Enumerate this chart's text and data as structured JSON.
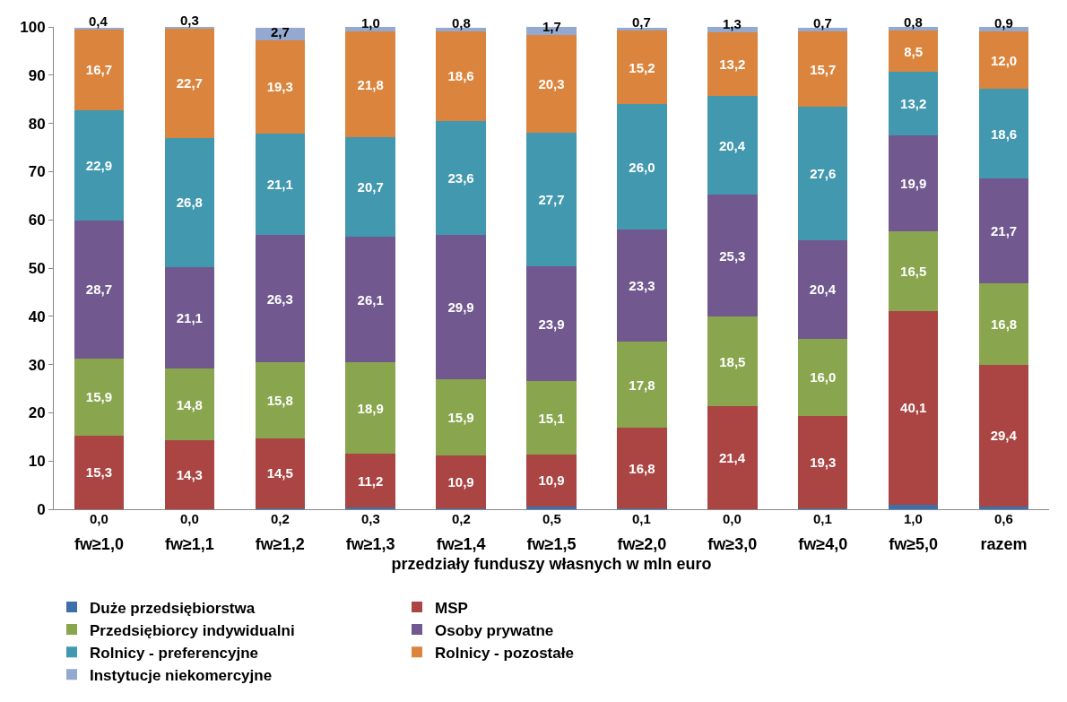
{
  "chart_data": {
    "type": "bar",
    "stacked": true,
    "xlabel": "przedziały funduszy własnych w mln euro",
    "categories": [
      "fw≥1,0",
      "fw≥1,1",
      "fw≥1,2",
      "fw≥1,3",
      "fw≥1,4",
      "fw≥1,5",
      "fw≥2,0",
      "fw≥3,0",
      "fw≥4,0",
      "fw≥5,0",
      "razem"
    ],
    "ylim": [
      0,
      100
    ],
    "yticks": [
      0,
      10,
      20,
      30,
      40,
      50,
      60,
      70,
      80,
      90,
      100
    ],
    "grid": false,
    "legend": "bottom",
    "series": [
      {
        "name": "Duże przedsiębiorstwa",
        "color": "#3f6faa",
        "values": [
          0.0,
          0.0,
          0.2,
          0.3,
          0.2,
          0.5,
          0.1,
          0.0,
          0.1,
          1.0,
          0.6
        ],
        "value_labels": [
          "0,0",
          "0,0",
          "0,2",
          "0,3",
          "0,2",
          "0,5",
          "0,1",
          "0,0",
          "0,1",
          "1,0",
          "0,6"
        ]
      },
      {
        "name": "MSP",
        "color": "#aa4543",
        "values": [
          15.3,
          14.3,
          14.5,
          11.2,
          10.9,
          10.9,
          16.8,
          21.4,
          19.3,
          40.1,
          29.4
        ],
        "value_labels": [
          "15,3",
          "14,3",
          "14,5",
          "11,2",
          "10,9",
          "10,9",
          "16,8",
          "21,4",
          "19,3",
          "40,1",
          "29,4"
        ]
      },
      {
        "name": "Przedsiębiorcy indywidualni",
        "color": "#89a54e",
        "values": [
          15.9,
          14.8,
          15.8,
          18.9,
          15.9,
          15.1,
          17.8,
          18.5,
          16.0,
          16.5,
          16.8
        ],
        "value_labels": [
          "15,9",
          "14,8",
          "15,8",
          "18,9",
          "15,9",
          "15,1",
          "17,8",
          "18,5",
          "16,0",
          "16,5",
          "16,8"
        ]
      },
      {
        "name": "Osoby prywatne",
        "color": "#71588f",
        "values": [
          28.7,
          21.1,
          26.3,
          26.1,
          29.9,
          23.9,
          23.3,
          25.3,
          20.4,
          19.9,
          21.7
        ],
        "value_labels": [
          "28,7",
          "21,1",
          "26,3",
          "26,1",
          "29,9",
          "23,9",
          "23,3",
          "25,3",
          "20,4",
          "19,9",
          "21,7"
        ]
      },
      {
        "name": "Rolnicy - preferencyjne",
        "color": "#4198af",
        "values": [
          22.9,
          26.8,
          21.1,
          20.7,
          23.6,
          27.7,
          26.0,
          20.4,
          27.6,
          13.2,
          18.6
        ],
        "value_labels": [
          "22,9",
          "26,8",
          "21,1",
          "20,7",
          "23,6",
          "27,7",
          "26,0",
          "20,4",
          "27,6",
          "13,2",
          "18,6"
        ]
      },
      {
        "name": "Rolnicy - pozostałe",
        "color": "#db843d",
        "values": [
          16.7,
          22.7,
          19.3,
          21.8,
          18.6,
          20.3,
          15.2,
          13.2,
          15.7,
          8.5,
          12.0
        ],
        "value_labels": [
          "16,7",
          "22,7",
          "19,3",
          "21,8",
          "18,6",
          "20,3",
          "15,2",
          "13,2",
          "15,7",
          "8,5",
          "12,0"
        ]
      },
      {
        "name": "Instytucje niekomercyjne",
        "color": "#93a9cf",
        "values": [
          0.4,
          0.3,
          2.7,
          1.0,
          0.8,
          1.7,
          0.7,
          1.3,
          0.7,
          0.8,
          0.9
        ],
        "value_labels": [
          "0,4",
          "0,3",
          "2,7",
          "1,0",
          "0,8",
          "1,7",
          "0,7",
          "1,3",
          "0,7",
          "0,8",
          "0,9"
        ]
      }
    ]
  }
}
